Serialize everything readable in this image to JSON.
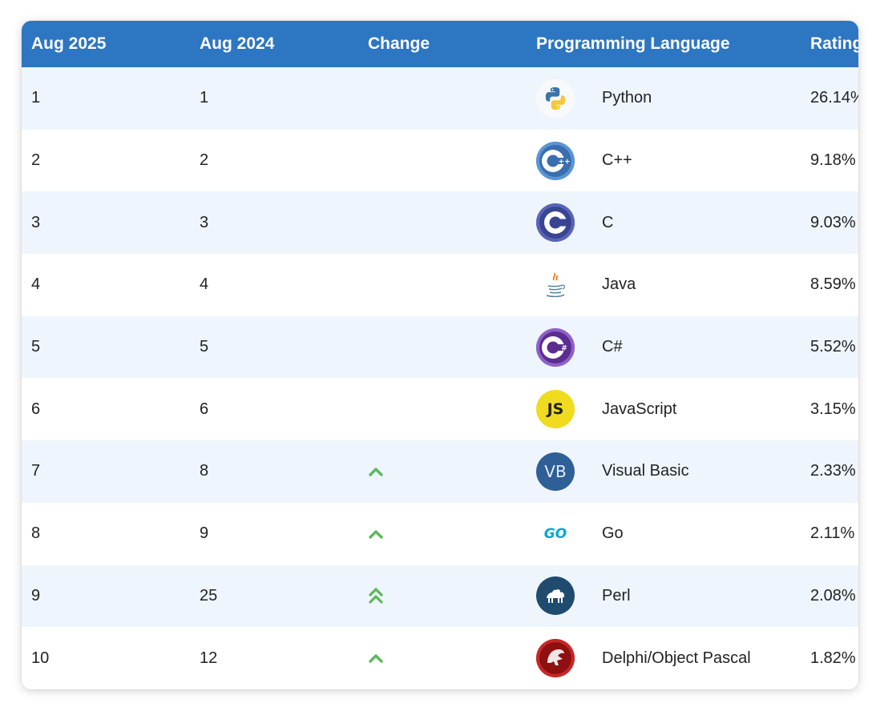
{
  "header": {
    "col_current": "Aug 2025",
    "col_previous": "Aug 2024",
    "col_change": "Change",
    "col_language": "Programming Language",
    "col_ratings": "Ratings"
  },
  "colors": {
    "header_bg": "#2d76c2",
    "row_alt_bg": "#eef5fd",
    "change_up": "#5cb85c"
  },
  "rows": [
    {
      "rank": "1",
      "prev": "1",
      "change": "",
      "language": "Python",
      "rating": "26.14%",
      "icon": "python-logo-icon"
    },
    {
      "rank": "2",
      "prev": "2",
      "change": "",
      "language": "C++",
      "rating": "9.18%",
      "icon": "cpp-logo-icon"
    },
    {
      "rank": "3",
      "prev": "3",
      "change": "",
      "language": "C",
      "rating": "9.03%",
      "icon": "c-logo-icon"
    },
    {
      "rank": "4",
      "prev": "4",
      "change": "",
      "language": "Java",
      "rating": "8.59%",
      "icon": "java-logo-icon"
    },
    {
      "rank": "5",
      "prev": "5",
      "change": "",
      "language": "C#",
      "rating": "5.52%",
      "icon": "csharp-logo-icon"
    },
    {
      "rank": "6",
      "prev": "6",
      "change": "",
      "language": "JavaScript",
      "rating": "3.15%",
      "icon": "javascript-logo-icon"
    },
    {
      "rank": "7",
      "prev": "8",
      "change": "up",
      "language": "Visual Basic",
      "rating": "2.33%",
      "icon": "visual-basic-logo-icon"
    },
    {
      "rank": "8",
      "prev": "9",
      "change": "up",
      "language": "Go",
      "rating": "2.11%",
      "icon": "go-logo-icon"
    },
    {
      "rank": "9",
      "prev": "25",
      "change": "double-up",
      "language": "Perl",
      "rating": "2.08%",
      "icon": "perl-logo-icon"
    },
    {
      "rank": "10",
      "prev": "12",
      "change": "up",
      "language": "Delphi/Object Pascal",
      "rating": "1.82%",
      "icon": "delphi-logo-icon"
    }
  ],
  "logo_text": {
    "javascript": "JS",
    "visual_basic": "VB",
    "go": "GO"
  }
}
